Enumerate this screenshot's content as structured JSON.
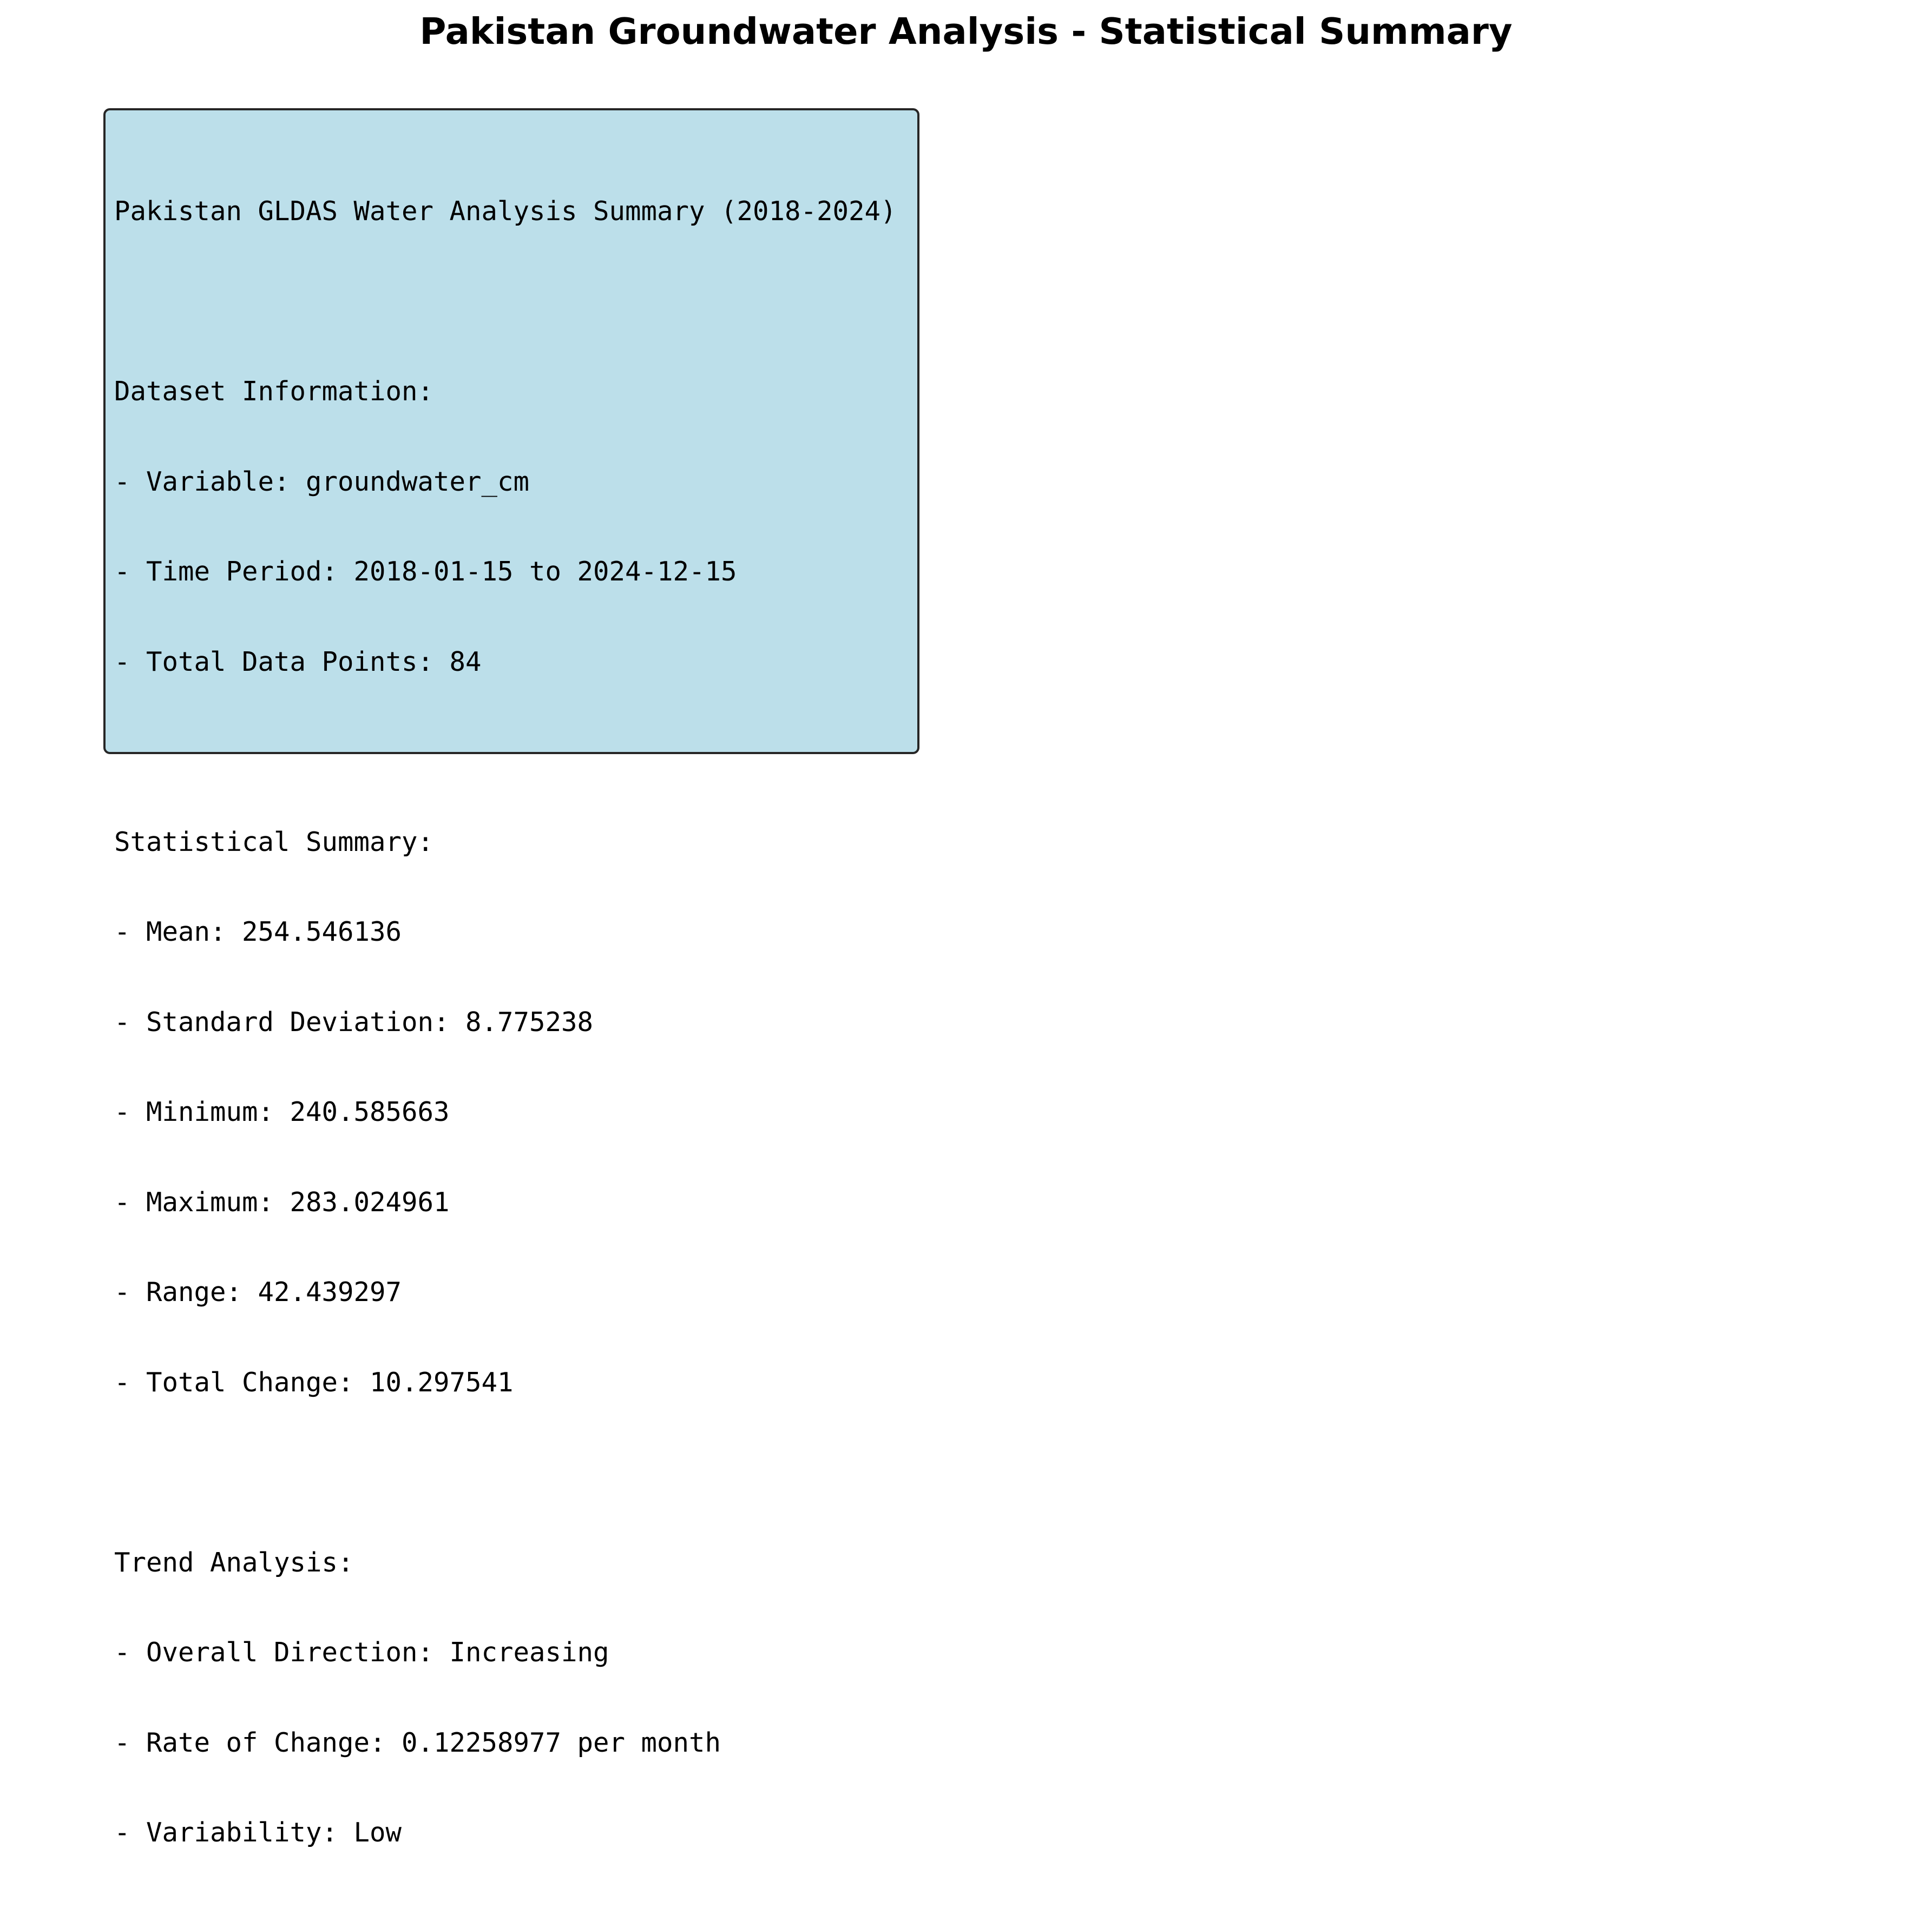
{
  "title": "Pakistan Groundwater Analysis - Statistical Summary",
  "summary": {
    "heading": "Pakistan GLDAS Water Analysis Summary (2018-2024)",
    "dataset": {
      "header": "Dataset Information:",
      "variable": "- Variable: groundwater_cm",
      "time_period": "- Time Period: 2018-01-15 to 2024-12-15",
      "total_points": "- Total Data Points: 84"
    },
    "statistics": {
      "header": "Statistical Summary:",
      "mean": "- Mean: 254.546136",
      "std_dev": "- Standard Deviation: 8.775238",
      "minimum": "- Minimum: 240.585663",
      "maximum": "- Maximum: 283.024961",
      "range": "- Range: 42.439297",
      "total_change": "- Total Change: 10.297541"
    },
    "trend": {
      "header": "Trend Analysis:",
      "direction": "- Overall Direction: Increasing",
      "rate": "- Rate of Change: 0.12258977 per month",
      "variability": "- Variability: Low"
    }
  },
  "colors": {
    "box_fill": "#bcdfea",
    "box_border": "#262626"
  }
}
